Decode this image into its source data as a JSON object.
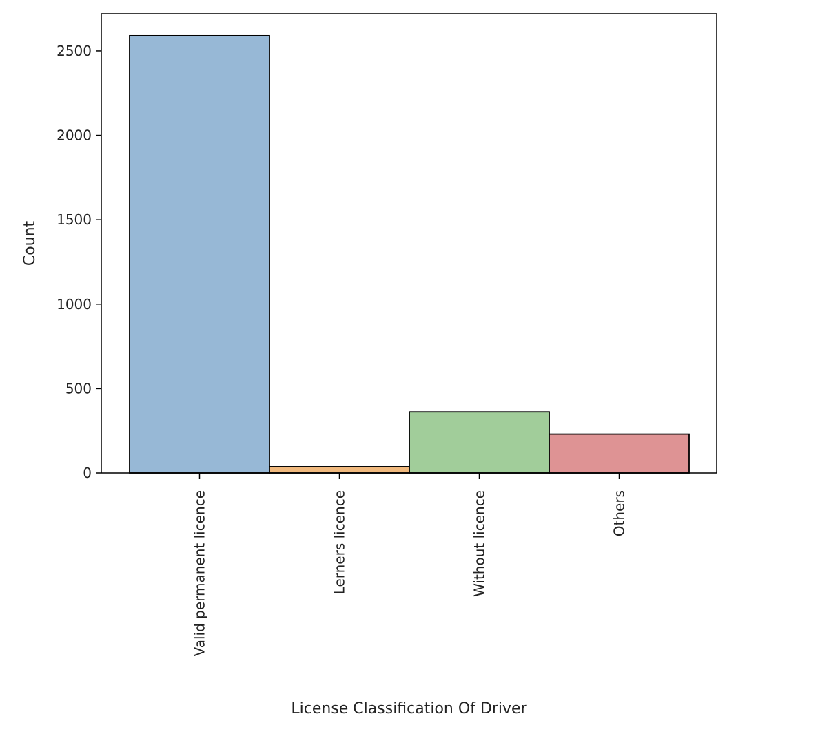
{
  "chart_data": {
    "type": "bar",
    "title": "",
    "xlabel": "License Classification Of Driver",
    "ylabel": "Count",
    "categories": [
      "Valid permanent licence",
      "Lerners licence",
      "Without licence",
      "Others"
    ],
    "values": [
      2590,
      37,
      362,
      230
    ],
    "colors": [
      "#97b8d6",
      "#f0b97e",
      "#a1cd9a",
      "#de9394"
    ],
    "ylim": [
      0,
      2720
    ],
    "yticks": [
      0,
      500,
      1000,
      1500,
      2000,
      2500
    ],
    "grid": false,
    "legend": false
  }
}
